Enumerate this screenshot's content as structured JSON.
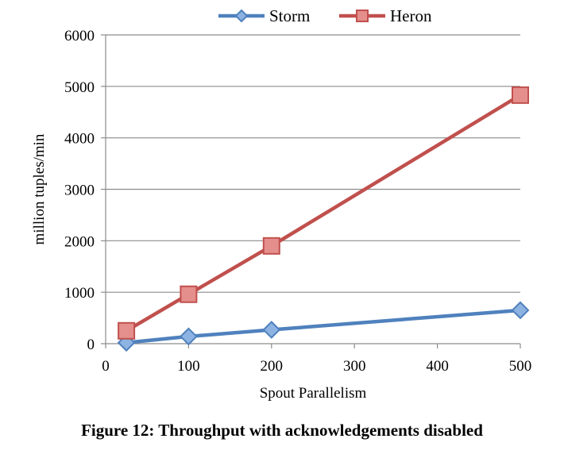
{
  "caption": "Figure 12: Throughput with acknowledgements disabled",
  "chart_data": {
    "type": "line",
    "title": "",
    "xlabel": "Spout Parallelism",
    "ylabel": "million tuples/min",
    "xlim": [
      0,
      500
    ],
    "ylim": [
      0,
      6000
    ],
    "x_ticks": [
      "0",
      "100",
      "200",
      "300",
      "400",
      "500"
    ],
    "y_ticks": [
      "0",
      "1000",
      "2000",
      "3000",
      "4000",
      "5000",
      "6000"
    ],
    "grid": "horizontal",
    "legend_position": "top",
    "series": [
      {
        "name": "Storm",
        "color": "#4F81BD",
        "marker": "diamond",
        "x": [
          25,
          100,
          200,
          500
        ],
        "y": [
          20,
          140,
          270,
          650
        ]
      },
      {
        "name": "Heron",
        "color": "#C0504D",
        "marker": "square",
        "x": [
          25,
          100,
          200,
          500
        ],
        "y": [
          250,
          960,
          1900,
          4830
        ]
      }
    ]
  }
}
